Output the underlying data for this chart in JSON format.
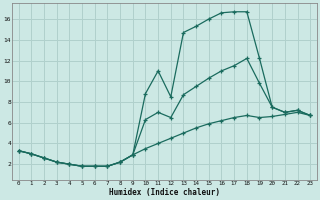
{
  "xlabel": "Humidex (Indice chaleur)",
  "xlim": [
    -0.5,
    23.5
  ],
  "ylim": [
    0.5,
    17.5
  ],
  "yticks": [
    2,
    4,
    6,
    8,
    10,
    12,
    14,
    16
  ],
  "xticks": [
    0,
    1,
    2,
    3,
    4,
    5,
    6,
    7,
    8,
    9,
    10,
    11,
    12,
    13,
    14,
    15,
    16,
    17,
    18,
    19,
    20,
    21,
    22,
    23
  ],
  "bg_color": "#cce8e4",
  "grid_color": "#b0d0cc",
  "line_color": "#1a6b5e",
  "line1_x": [
    0,
    1,
    2,
    3,
    4,
    5,
    6,
    7,
    8,
    9,
    10,
    11,
    12,
    13,
    14,
    15,
    16,
    17,
    18,
    19,
    20,
    21,
    22,
    23
  ],
  "line1_y": [
    3.3,
    3.0,
    2.6,
    2.2,
    2.0,
    1.8,
    1.8,
    1.8,
    2.2,
    2.9,
    8.8,
    11.0,
    8.5,
    14.7,
    15.3,
    16.0,
    16.6,
    16.7,
    16.7,
    12.2,
    7.5,
    7.0,
    7.2,
    6.7
  ],
  "line2_x": [
    0,
    1,
    2,
    3,
    4,
    5,
    6,
    7,
    8,
    9,
    10,
    11,
    12,
    13,
    14,
    15,
    16,
    17,
    18,
    19,
    20,
    21,
    22,
    23
  ],
  "line2_y": [
    3.3,
    3.0,
    2.6,
    2.2,
    2.0,
    1.8,
    1.8,
    1.8,
    2.2,
    2.9,
    6.3,
    7.0,
    6.5,
    8.7,
    9.5,
    10.3,
    11.0,
    11.5,
    12.2,
    9.8,
    7.5,
    7.0,
    7.2,
    6.7
  ],
  "line3_x": [
    0,
    1,
    2,
    3,
    4,
    5,
    6,
    7,
    8,
    9,
    10,
    11,
    12,
    13,
    14,
    15,
    16,
    17,
    18,
    19,
    20,
    21,
    22,
    23
  ],
  "line3_y": [
    3.3,
    3.0,
    2.6,
    2.2,
    2.0,
    1.8,
    1.8,
    1.8,
    2.2,
    2.9,
    3.5,
    4.0,
    4.5,
    5.0,
    5.5,
    5.9,
    6.2,
    6.5,
    6.7,
    6.5,
    6.6,
    6.8,
    7.0,
    6.7
  ]
}
